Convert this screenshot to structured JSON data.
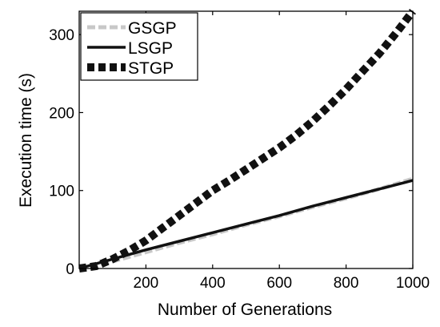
{
  "chart_data": {
    "type": "line",
    "title": "",
    "xlabel": "Number of Generations",
    "ylabel": "Execution time (s)",
    "xlim": [
      0,
      1000
    ],
    "ylim": [
      0,
      330
    ],
    "xticks": [
      200,
      400,
      600,
      800,
      1000
    ],
    "yticks": [
      0,
      100,
      200,
      300
    ],
    "xtick_labels": [
      "200",
      "400",
      "600",
      "800",
      "1000"
    ],
    "ytick_labels": [
      "0",
      "100",
      "200",
      "300"
    ],
    "grid": false,
    "legend_position": "top-left",
    "series": [
      {
        "name": "GSGP",
        "style": "dashed",
        "color": "#c8c8c8",
        "x": [
          0,
          100,
          200,
          300,
          400,
          500,
          600,
          700,
          800,
          900,
          1000
        ],
        "y": [
          0,
          9,
          21,
          33,
          44,
          56,
          67,
          79,
          90,
          102,
          115
        ]
      },
      {
        "name": "LSGP",
        "style": "solid",
        "color": "#111111",
        "x": [
          0,
          100,
          200,
          300,
          400,
          500,
          600,
          700,
          800,
          900,
          1000
        ],
        "y": [
          0,
          12,
          24,
          35,
          46,
          57,
          68,
          80,
          91,
          102,
          113
        ]
      },
      {
        "name": "STGP",
        "style": "dotted",
        "color": "#111111",
        "x": [
          0,
          50,
          100,
          150,
          200,
          250,
          300,
          350,
          400,
          450,
          500,
          550,
          600,
          650,
          700,
          750,
          800,
          850,
          900,
          950,
          1000
        ],
        "y": [
          0,
          3,
          12,
          23,
          36,
          52,
          68,
          84,
          100,
          113,
          127,
          141,
          155,
          171,
          189,
          209,
          230,
          253,
          276,
          302,
          330
        ]
      }
    ]
  }
}
